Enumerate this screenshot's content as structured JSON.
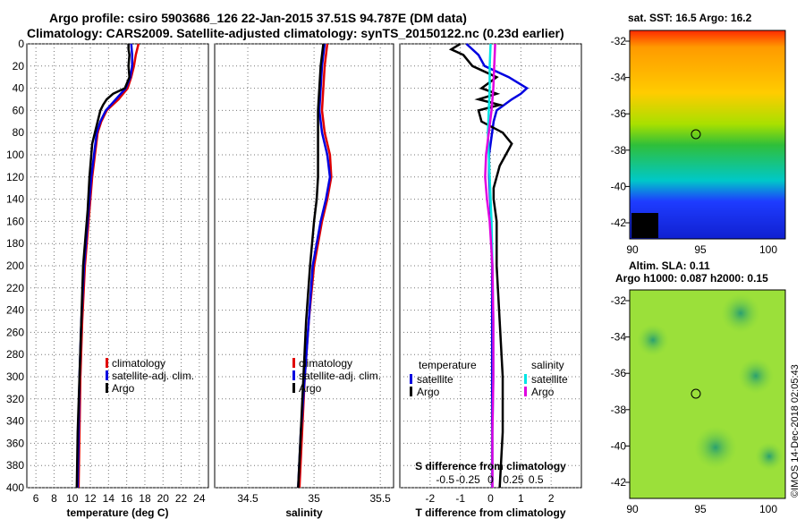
{
  "header": {
    "title_line1": "Argo profile: csiro 5903686_126 22-Jan-2015 37.51S 94.787E (DM data)",
    "title_line2": "Climatology: CARS2009. Satellite-adjusted climatology: synTS_20150122.nc (0.23d earlier)"
  },
  "maps": {
    "sst_title": "sat. SST: 16.5 Argo: 16.2",
    "sla_title_line1": "Altim. SLA: 0.11",
    "sla_title_line2": "Argo h1000: 0.087 h2000: 0.15",
    "lat_ticks": [
      "-32",
      "-34",
      "-36",
      "-38",
      "-40",
      "-42"
    ],
    "lon_ticks": [
      "90",
      "95",
      "100"
    ]
  },
  "credit": "©IMOS 14-Dec-2018 02:05:43",
  "colors": {
    "climatology": "#e00000",
    "satellite_adj": "#0000e0",
    "argo": "#000000",
    "sal_satellite": "#00e5e5",
    "sal_argo": "#e000e0"
  },
  "chart_data": [
    {
      "type": "line",
      "name": "temperature",
      "xlabel": "temperature (deg C)",
      "ylabel": "",
      "xlim": [
        5,
        25
      ],
      "ylim": [
        400,
        0
      ],
      "x_ticks": [
        "6",
        "8",
        "10",
        "12",
        "14",
        "16",
        "18",
        "20",
        "22",
        "24"
      ],
      "y_ticks": [
        "0",
        "20",
        "40",
        "60",
        "80",
        "100",
        "120",
        "140",
        "160",
        "180",
        "200",
        "220",
        "240",
        "260",
        "280",
        "300",
        "320",
        "340",
        "360",
        "380",
        "400"
      ],
      "legend": [
        "climatology",
        "satellite-adj. clim.",
        "Argo"
      ],
      "series": [
        {
          "name": "climatology",
          "depth": [
            0,
            10,
            20,
            30,
            40,
            50,
            60,
            70,
            80,
            100,
            120,
            150,
            200,
            250,
            300,
            350,
            400
          ],
          "values": [
            17.3,
            17.0,
            16.8,
            16.5,
            16.1,
            15.1,
            13.8,
            13.2,
            12.8,
            12.5,
            12.2,
            11.9,
            11.4,
            11.1,
            10.9,
            10.8,
            10.7
          ]
        },
        {
          "name": "satellite-adj. clim.",
          "depth": [
            0,
            10,
            20,
            30,
            40,
            50,
            60,
            70,
            80,
            100,
            120,
            150,
            200,
            250,
            300,
            350,
            400
          ],
          "values": [
            16.5,
            16.6,
            16.6,
            16.4,
            15.9,
            14.8,
            13.7,
            13.1,
            12.7,
            12.4,
            12.1,
            11.8,
            11.3,
            11.0,
            10.8,
            10.7,
            10.6
          ]
        },
        {
          "name": "Argo",
          "depth": [
            0,
            5,
            10,
            20,
            30,
            40,
            45,
            50,
            55,
            60,
            70,
            80,
            90,
            100,
            120,
            150,
            200,
            250,
            300,
            350,
            400
          ],
          "values": [
            16.2,
            16.2,
            16.3,
            16.2,
            16.3,
            15.8,
            14.5,
            13.8,
            13.4,
            13.1,
            12.8,
            12.5,
            12.2,
            12.1,
            11.9,
            11.7,
            11.2,
            11.0,
            10.8,
            10.6,
            10.5
          ]
        }
      ]
    },
    {
      "type": "line",
      "name": "salinity",
      "xlabel": "salinity",
      "ylabel": "",
      "xlim": [
        34.25,
        35.6
      ],
      "ylim": [
        400,
        0
      ],
      "x_ticks": [
        "34.5",
        "35",
        "35.5"
      ],
      "legend": [
        "climatology",
        "satellite-adj. clim.",
        "Argo"
      ],
      "series": [
        {
          "name": "climatology",
          "depth": [
            0,
            10,
            20,
            40,
            60,
            80,
            100,
            120,
            140,
            160,
            200,
            250,
            300,
            350,
            400
          ],
          "values": [
            35.1,
            35.09,
            35.08,
            35.07,
            35.06,
            35.08,
            35.12,
            35.13,
            35.1,
            35.06,
            35.0,
            34.96,
            34.93,
            34.91,
            34.89
          ]
        },
        {
          "name": "satellite-adj. clim.",
          "depth": [
            0,
            10,
            20,
            40,
            60,
            80,
            100,
            120,
            140,
            160,
            200,
            250,
            300,
            350,
            400
          ],
          "values": [
            35.08,
            35.07,
            35.06,
            35.05,
            35.04,
            35.06,
            35.1,
            35.12,
            35.09,
            35.05,
            34.99,
            34.96,
            34.93,
            34.9,
            34.88
          ]
        },
        {
          "name": "Argo",
          "depth": [
            0,
            10,
            20,
            40,
            60,
            80,
            100,
            120,
            140,
            160,
            200,
            250,
            300,
            350,
            400
          ],
          "values": [
            35.07,
            35.06,
            35.05,
            35.04,
            35.03,
            35.03,
            35.03,
            35.03,
            35.02,
            35.0,
            34.97,
            34.94,
            34.92,
            34.9,
            34.88
          ]
        }
      ]
    },
    {
      "type": "line",
      "name": "difference",
      "xlabel": "T difference from climatology",
      "top_label": "S difference from climatology",
      "xlim": [
        -3,
        3
      ],
      "ylim": [
        400,
        0
      ],
      "x_ticks": [
        "-2",
        "-1",
        "0",
        "1",
        "2"
      ],
      "s_ticks": [
        "-0.5",
        "-0.25",
        "0",
        "0.25",
        "0.5"
      ],
      "legend_temperature_title": "temperature",
      "legend_salinity_title": "salinity",
      "legend_temperature": [
        "satellite",
        "Argo"
      ],
      "legend_salinity": [
        "satellite",
        "Argo"
      ],
      "series": [
        {
          "name": "T satellite",
          "depth": [
            0,
            10,
            20,
            30,
            40,
            45,
            50,
            60,
            70,
            80,
            100,
            120,
            150,
            200,
            250,
            300,
            350,
            400
          ],
          "values": [
            -0.8,
            -0.4,
            -0.2,
            0.6,
            1.2,
            1.0,
            0.7,
            0.2,
            0.1,
            0.05,
            -0.05,
            -0.05,
            0.0,
            0.05,
            0.05,
            0.05,
            0.05,
            0.05
          ]
        },
        {
          "name": "T Argo",
          "depth": [
            0,
            5,
            10,
            20,
            30,
            40,
            45,
            50,
            55,
            60,
            70,
            80,
            90,
            100,
            110,
            120,
            130,
            140,
            160,
            200,
            250,
            300,
            350,
            400
          ],
          "values": [
            -1.0,
            -1.3,
            -0.9,
            -0.6,
            0.2,
            -0.3,
            0.2,
            -0.4,
            0.3,
            -0.4,
            -0.3,
            0.4,
            0.7,
            0.5,
            0.3,
            0.2,
            0.1,
            0.1,
            0.2,
            0.2,
            0.3,
            0.4,
            0.4,
            0.3
          ]
        },
        {
          "name": "S satellite",
          "depth": [
            0,
            20,
            40,
            60,
            80,
            100,
            120,
            140,
            160,
            200,
            250,
            300,
            350,
            400
          ],
          "values": [
            0.0,
            -0.01,
            -0.01,
            -0.02,
            -0.03,
            -0.02,
            -0.01,
            0.0,
            0.01,
            0.02,
            0.03,
            0.03,
            0.02,
            0.02
          ]
        },
        {
          "name": "S Argo",
          "depth": [
            0,
            20,
            40,
            60,
            80,
            100,
            120,
            140,
            160,
            200,
            250,
            300,
            350,
            400
          ],
          "values": [
            0.05,
            0.04,
            0.03,
            0.01,
            -0.02,
            -0.05,
            -0.06,
            -0.04,
            -0.01,
            0.02,
            0.03,
            0.03,
            0.02,
            0.02
          ]
        }
      ]
    }
  ]
}
